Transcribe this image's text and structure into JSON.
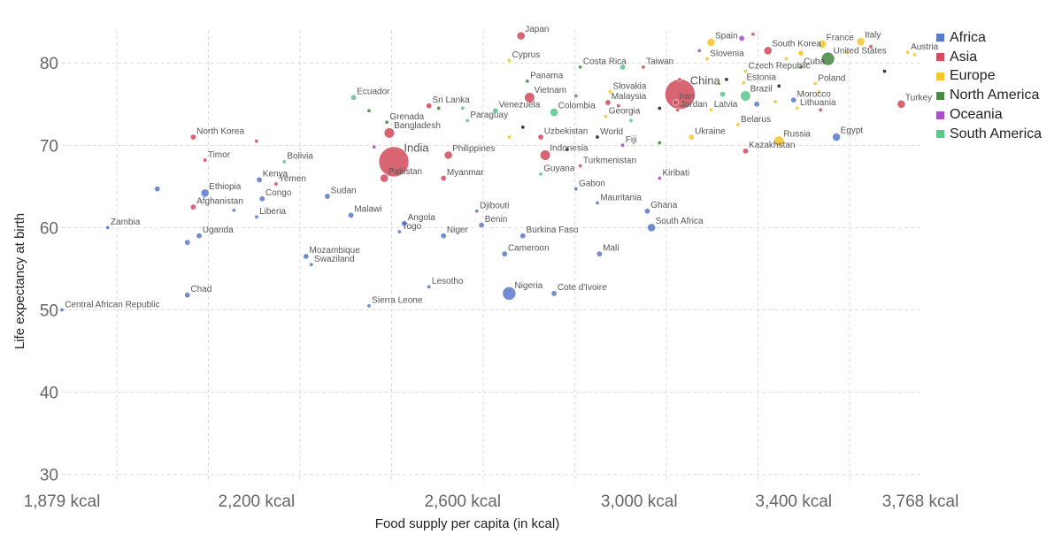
{
  "chart_data": {
    "type": "scatter",
    "xlabel": "Food supply per capita (in kcal)",
    "ylabel": "Life expectancy at birth",
    "x_scale": "log",
    "xlim": [
      1879,
      3768
    ],
    "ylim": [
      29,
      84
    ],
    "x_ticks": [
      1879,
      2200,
      2600,
      3000,
      3400,
      3768
    ],
    "x_tick_labels": [
      "1,879 kcal",
      "2,200 kcal",
      "2,600 kcal",
      "3,000 kcal",
      "3,400 kcal",
      "3,768 kcal"
    ],
    "y_ticks": [
      30,
      40,
      50,
      60,
      70,
      80
    ],
    "y_tick_labels": [
      "30",
      "40",
      "50",
      "60",
      "70",
      "80"
    ],
    "grid": true,
    "legend_position": "right",
    "series": [
      {
        "name": "Africa",
        "color": "#5b7dc9"
      },
      {
        "name": "Asia",
        "color": "#d1505f"
      },
      {
        "name": "Europe",
        "color": "#f7c631"
      },
      {
        "name": "North America",
        "color": "#4a8a48"
      },
      {
        "name": "Oceania",
        "color": "#a552c4"
      },
      {
        "name": "South America",
        "color": "#5cc88a"
      }
    ],
    "points": [
      {
        "label": "Japan",
        "x": 2726,
        "y": 83.3,
        "series": "Asia",
        "size": 3
      },
      {
        "label": "Cyprus",
        "x": 2700,
        "y": 80.3,
        "series": "Europe",
        "size": 1
      },
      {
        "label": "Costa Rica",
        "x": 2860,
        "y": 79.5,
        "series": "North America",
        "size": 1
      },
      {
        "label": "Taiwan",
        "x": 3010,
        "y": 79.5,
        "series": "Asia",
        "size": 1
      },
      {
        "label": "Spain",
        "x": 3180,
        "y": 82.5,
        "series": "Europe",
        "size": 3
      },
      {
        "label": "Slovenia",
        "x": 3170,
        "y": 80.5,
        "series": "Europe",
        "size": 1
      },
      {
        "label": "South Korea",
        "x": 3330,
        "y": 81.5,
        "series": "Asia",
        "size": 3
      },
      {
        "label": "France",
        "x": 3480,
        "y": 82.3,
        "series": "Europe",
        "size": 3
      },
      {
        "label": "Italy",
        "x": 3590,
        "y": 82.6,
        "series": "Europe",
        "size": 3
      },
      {
        "label": "Cuba",
        "x": 3420,
        "y": 79.5,
        "series": "North America",
        "size": 1
      },
      {
        "label": "United States",
        "x": 3496,
        "y": 80.5,
        "series": "North America",
        "size": 5
      },
      {
        "label": "Austria",
        "x": 3730,
        "y": 81.3,
        "series": "Europe",
        "size": 1
      },
      {
        "label": "Panama",
        "x": 2740,
        "y": 77.8,
        "series": "North America",
        "size": 1
      },
      {
        "label": "Vietnam",
        "x": 2745,
        "y": 75.8,
        "series": "Asia",
        "size": 4
      },
      {
        "label": "China",
        "x": 3101,
        "y": 76.2,
        "series": "Asia",
        "size": 8
      },
      {
        "label": "Iran",
        "x": 3090,
        "y": 75.2,
        "series": "Asia",
        "size": 2
      },
      {
        "label": "Jordan",
        "x": 3095,
        "y": 74.3,
        "series": "Asia",
        "size": 1
      },
      {
        "label": "Czech Republic",
        "x": 3270,
        "y": 79.0,
        "series": "Europe",
        "size": 1
      },
      {
        "label": "Estonia",
        "x": 3265,
        "y": 77.6,
        "series": "Europe",
        "size": 1
      },
      {
        "label": "Brazil",
        "x": 3270,
        "y": 76.0,
        "series": "South America",
        "size": 4
      },
      {
        "label": "Poland",
        "x": 3460,
        "y": 77.5,
        "series": "Europe",
        "size": 1
      },
      {
        "label": "Morocco",
        "x": 3400,
        "y": 75.5,
        "series": "Africa",
        "size": 2
      },
      {
        "label": "Lithuania",
        "x": 3410,
        "y": 74.5,
        "series": "Europe",
        "size": 1
      },
      {
        "label": "Turkey",
        "x": 3710,
        "y": 75.0,
        "series": "Asia",
        "size": 3
      },
      {
        "label": "Latvia",
        "x": 3180,
        "y": 74.3,
        "series": "Europe",
        "size": 1
      },
      {
        "label": "Belarus",
        "x": 3250,
        "y": 72.5,
        "series": "Europe",
        "size": 1
      },
      {
        "label": "Ukraine",
        "x": 3130,
        "y": 71.0,
        "series": "Europe",
        "size": 2
      },
      {
        "label": "Russia",
        "x": 3360,
        "y": 70.5,
        "series": "Europe",
        "size": 4
      },
      {
        "label": "Egypt",
        "x": 3520,
        "y": 71.0,
        "series": "Africa",
        "size": 3
      },
      {
        "label": "Kazakhstan",
        "x": 3270,
        "y": 69.3,
        "series": "Asia",
        "size": 2
      },
      {
        "label": "Ecuador",
        "x": 2380,
        "y": 75.8,
        "series": "South America",
        "size": 2
      },
      {
        "label": "Sri Lanka",
        "x": 2530,
        "y": 74.8,
        "series": "Asia",
        "size": 2
      },
      {
        "label": "Venezuela",
        "x": 2670,
        "y": 74.2,
        "series": "South America",
        "size": 2
      },
      {
        "label": "Grenada",
        "x": 2445,
        "y": 72.8,
        "series": "North America",
        "size": 1
      },
      {
        "label": "Paraguay",
        "x": 2610,
        "y": 73.0,
        "series": "South America",
        "size": 1
      },
      {
        "label": "Bangladesh",
        "x": 2450,
        "y": 71.5,
        "series": "Asia",
        "size": 4
      },
      {
        "label": "Colombia",
        "x": 2800,
        "y": 74.0,
        "series": "South America",
        "size": 3
      },
      {
        "label": "Slovakia",
        "x": 2930,
        "y": 76.5,
        "series": "Europe",
        "size": 1
      },
      {
        "label": "Malaysia",
        "x": 2925,
        "y": 75.2,
        "series": "Asia",
        "size": 2
      },
      {
        "label": "Georgia",
        "x": 2920,
        "y": 73.5,
        "series": "Europe",
        "size": 1
      },
      {
        "label": "Uzbekistan",
        "x": 2770,
        "y": 71.0,
        "series": "Asia",
        "size": 2
      },
      {
        "label": "World",
        "x": 2900,
        "y": 71.0,
        "series": "",
        "size": 1
      },
      {
        "label": "Fiji",
        "x": 2960,
        "y": 70.0,
        "series": "Oceania",
        "size": 1
      },
      {
        "label": "North Korea",
        "x": 2090,
        "y": 71.0,
        "series": "Asia",
        "size": 2
      },
      {
        "label": "India",
        "x": 2459,
        "y": 68.0,
        "series": "Asia",
        "size": 8
      },
      {
        "label": "Pakistan",
        "x": 2440,
        "y": 66.0,
        "series": "Asia",
        "size": 3
      },
      {
        "label": "Philippines",
        "x": 2570,
        "y": 68.8,
        "series": "Asia",
        "size": 3
      },
      {
        "label": "Indonesia",
        "x": 2780,
        "y": 68.8,
        "series": "Asia",
        "size": 4
      },
      {
        "label": "Myanmar",
        "x": 2560,
        "y": 66.0,
        "series": "Asia",
        "size": 2
      },
      {
        "label": "Turkmenistan",
        "x": 2860,
        "y": 67.5,
        "series": "Asia",
        "size": 1
      },
      {
        "label": "Guyana",
        "x": 2770,
        "y": 66.5,
        "series": "South America",
        "size": 1
      },
      {
        "label": "Gabon",
        "x": 2850,
        "y": 64.7,
        "series": "Africa",
        "size": 1
      },
      {
        "label": "Kiribati",
        "x": 3050,
        "y": 66.0,
        "series": "Oceania",
        "size": 1
      },
      {
        "label": "Mauritania",
        "x": 2900,
        "y": 63.0,
        "series": "Africa",
        "size": 1
      },
      {
        "label": "Ghana",
        "x": 3020,
        "y": 62.0,
        "series": "Africa",
        "size": 2
      },
      {
        "label": "South Africa",
        "x": 3030,
        "y": 60.0,
        "series": "Africa",
        "size": 3
      },
      {
        "label": "Timor",
        "x": 2110,
        "y": 68.2,
        "series": "Asia",
        "size": 1
      },
      {
        "label": "Bolivia",
        "x": 2250,
        "y": 68.0,
        "series": "South America",
        "size": 1
      },
      {
        "label": "Kenya",
        "x": 2205,
        "y": 65.8,
        "series": "Africa",
        "size": 2
      },
      {
        "label": "Yemen",
        "x": 2235,
        "y": 65.3,
        "series": "Asia",
        "size": 1
      },
      {
        "label": "Ethiopia",
        "x": 2110,
        "y": 64.2,
        "series": "Africa",
        "size": 3
      },
      {
        "label": "Sudan",
        "x": 2330,
        "y": 63.8,
        "series": "Africa",
        "size": 2
      },
      {
        "label": "Congo",
        "x": 2210,
        "y": 63.5,
        "series": "Africa",
        "size": 2
      },
      {
        "label": "Afghanistan",
        "x": 2090,
        "y": 62.5,
        "series": "Asia",
        "size": 2
      },
      {
        "label": "Liberia",
        "x": 2200,
        "y": 61.3,
        "series": "Africa",
        "size": 1
      },
      {
        "label": "Malawi",
        "x": 2375,
        "y": 61.5,
        "series": "Africa",
        "size": 2
      },
      {
        "label": "Djibouti",
        "x": 2630,
        "y": 62.0,
        "series": "Africa",
        "size": 1
      },
      {
        "label": "Angola",
        "x": 2480,
        "y": 60.5,
        "series": "Africa",
        "size": 2
      },
      {
        "label": "Benin",
        "x": 2640,
        "y": 60.3,
        "series": "Africa",
        "size": 2
      },
      {
        "label": "Togo",
        "x": 2470,
        "y": 59.5,
        "series": "Africa",
        "size": 1
      },
      {
        "label": "Niger",
        "x": 2560,
        "y": 59.0,
        "series": "Africa",
        "size": 2
      },
      {
        "label": "Burkina Faso",
        "x": 2730,
        "y": 59.0,
        "series": "Africa",
        "size": 2
      },
      {
        "label": "Zambia",
        "x": 1950,
        "y": 60.0,
        "series": "Africa",
        "size": 1
      },
      {
        "label": "Uganda",
        "x": 2100,
        "y": 59.0,
        "series": "Africa",
        "size": 2
      },
      {
        "label": "Mozambique",
        "x": 2290,
        "y": 56.5,
        "series": "Africa",
        "size": 2
      },
      {
        "label": "Swaziland",
        "x": 2300,
        "y": 55.5,
        "series": "Africa",
        "size": 1
      },
      {
        "label": "Cameroon",
        "x": 2690,
        "y": 56.8,
        "series": "Africa",
        "size": 2
      },
      {
        "label": "Mali",
        "x": 2905,
        "y": 56.8,
        "series": "Africa",
        "size": 2
      },
      {
        "label": "Lesotho",
        "x": 2530,
        "y": 52.8,
        "series": "Africa",
        "size": 1
      },
      {
        "label": "Nigeria",
        "x": 2700,
        "y": 52.0,
        "series": "Africa",
        "size": 5
      },
      {
        "label": "Cote d'Ivoire",
        "x": 2800,
        "y": 52.0,
        "series": "Africa",
        "size": 2
      },
      {
        "label": "Chad",
        "x": 2080,
        "y": 51.8,
        "series": "Africa",
        "size": 2
      },
      {
        "label": "Sierra Leone",
        "x": 2410,
        "y": 50.5,
        "series": "Africa",
        "size": 1
      },
      {
        "label": "Central African Republic",
        "x": 1879,
        "y": 50.0,
        "series": "Africa",
        "size": 1
      },
      {
        "label": "",
        "x": 2030,
        "y": 64.7,
        "series": "Africa",
        "size": 2
      },
      {
        "label": "",
        "x": 2080,
        "y": 58.2,
        "series": "Africa",
        "size": 2
      },
      {
        "label": "",
        "x": 2160,
        "y": 62.1,
        "series": "Africa",
        "size": 1
      },
      {
        "label": "",
        "x": 2200,
        "y": 70.5,
        "series": "Asia",
        "size": 1
      },
      {
        "label": "",
        "x": 2410,
        "y": 74.2,
        "series": "North America",
        "size": 1
      },
      {
        "label": "",
        "x": 2600,
        "y": 74.5,
        "series": "South America",
        "size": 1
      },
      {
        "label": "",
        "x": 2850,
        "y": 76.0,
        "series": "Oceania",
        "size": 1
      },
      {
        "label": "",
        "x": 2950,
        "y": 74.8,
        "series": "Asia",
        "size": 1
      },
      {
        "label": "",
        "x": 3100,
        "y": 78.0,
        "series": "Asia",
        "size": 1
      },
      {
        "label": "",
        "x": 3050,
        "y": 74.5,
        "series": "",
        "size": 1
      },
      {
        "label": "",
        "x": 3050,
        "y": 70.3,
        "series": "North America",
        "size": 1
      },
      {
        "label": "",
        "x": 3260,
        "y": 83.0,
        "series": "Oceania",
        "size": 2
      },
      {
        "label": "",
        "x": 3290,
        "y": 83.5,
        "series": "Asia",
        "size": 1
      },
      {
        "label": "",
        "x": 3150,
        "y": 81.5,
        "series": "Oceania",
        "size": 1
      },
      {
        "label": "",
        "x": 3200,
        "y": 77.5,
        "series": "Europe",
        "size": 1
      },
      {
        "label": "",
        "x": 3220,
        "y": 78.0,
        "series": "",
        "size": 1
      },
      {
        "label": "",
        "x": 3210,
        "y": 76.2,
        "series": "South America",
        "size": 2
      },
      {
        "label": "",
        "x": 3300,
        "y": 75.0,
        "series": "Africa",
        "size": 2
      },
      {
        "label": "",
        "x": 3350,
        "y": 75.3,
        "series": "Europe",
        "size": 1
      },
      {
        "label": "",
        "x": 3360,
        "y": 77.2,
        "series": "",
        "size": 1
      },
      {
        "label": "",
        "x": 3380,
        "y": 80.5,
        "series": "Europe",
        "size": 1
      },
      {
        "label": "",
        "x": 3420,
        "y": 81.2,
        "series": "Europe",
        "size": 2
      },
      {
        "label": "",
        "x": 3470,
        "y": 76.5,
        "series": "Europe",
        "size": 1
      },
      {
        "label": "",
        "x": 3550,
        "y": 81.3,
        "series": "Europe",
        "size": 1
      },
      {
        "label": "",
        "x": 3620,
        "y": 82.0,
        "series": "Asia",
        "size": 1
      },
      {
        "label": "",
        "x": 3750,
        "y": 81.0,
        "series": "Europe",
        "size": 1
      },
      {
        "label": "",
        "x": 3660,
        "y": 79.0,
        "series": "",
        "size": 1
      },
      {
        "label": "",
        "x": 3475,
        "y": 74.3,
        "series": "Asia",
        "size": 1
      },
      {
        "label": "",
        "x": 2980,
        "y": 73.0,
        "series": "South America",
        "size": 1
      },
      {
        "label": "",
        "x": 2730,
        "y": 72.2,
        "series": "",
        "size": 1
      },
      {
        "label": "",
        "x": 2550,
        "y": 74.5,
        "series": "North America",
        "size": 1
      },
      {
        "label": "",
        "x": 2420,
        "y": 69.8,
        "series": "Oceania",
        "size": 1
      },
      {
        "label": "",
        "x": 2700,
        "y": 71.0,
        "series": "Europe",
        "size": 1
      },
      {
        "label": "",
        "x": 2830,
        "y": 69.5,
        "series": "",
        "size": 1
      },
      {
        "label": "",
        "x": 2960,
        "y": 79.5,
        "series": "South America",
        "size": 2
      }
    ]
  }
}
